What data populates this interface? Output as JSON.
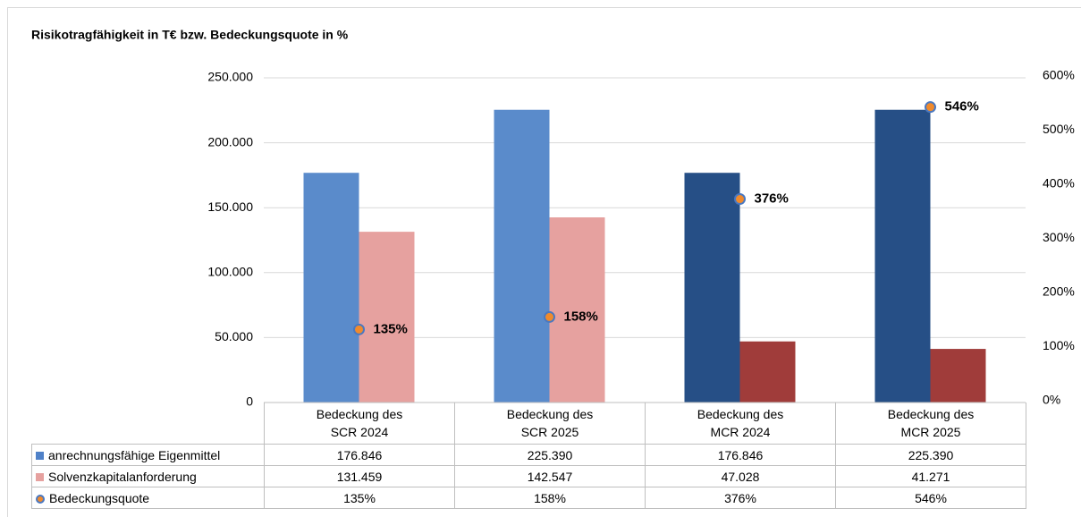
{
  "chart_data": {
    "type": "bar",
    "title": "Risikotragfähigkeit in T€ bzw. Bedeckungsquote in %",
    "categories": [
      "Bedeckung des SCR 2024",
      "Bedeckung des SCR 2025",
      "Bedeckung des MCR 2024",
      "Bedeckung des MCR 2025"
    ],
    "series": [
      {
        "name": "anrechnungsfähige Eigenmittel",
        "color": "#4f81c8",
        "colors": [
          "#5a8bcb",
          "#5a8bcb",
          "#264f86",
          "#264f86"
        ],
        "values": [
          176846,
          225390,
          176846,
          225390
        ],
        "value_labels": [
          "176.846",
          "225.390",
          "176.846",
          "225.390"
        ]
      },
      {
        "name": "Solvenzkapitalanforderung",
        "color": "#e6a19f",
        "colors": [
          "#e6a19f",
          "#e6a19f",
          "#a03c3a",
          "#a03c3a"
        ],
        "values": [
          131459,
          142547,
          47028,
          41271
        ],
        "value_labels": [
          "131.459",
          "142.547",
          "47.028",
          "41.271"
        ]
      },
      {
        "name": "Bedeckungsquote",
        "color": "#f08a2c",
        "axis": "y2",
        "values": [
          135,
          158,
          376,
          546
        ],
        "value_labels": [
          "135%",
          "158%",
          "376%",
          "546%"
        ]
      }
    ],
    "ylim": [
      0,
      250000
    ],
    "yticks": [
      0,
      {
        "value": 50000,
        "label": "50.000"
      },
      {
        "value": 100000,
        "label": "100.000"
      },
      {
        "value": 150000,
        "label": "150.000"
      },
      {
        "value": 200000,
        "label": "200.000"
      },
      {
        "value": 250000,
        "label": "250.000"
      }
    ],
    "y2lim": [
      0,
      600
    ],
    "y2ticks": [
      {
        "value": 0,
        "label": "0%"
      },
      {
        "value": 100,
        "label": "100%"
      },
      {
        "value": 200,
        "label": "200%"
      },
      {
        "value": 300,
        "label": "300%"
      },
      {
        "value": 400,
        "label": "400%"
      },
      {
        "value": 500,
        "label": "500%"
      },
      {
        "value": 600,
        "label": "600%"
      }
    ],
    "grid": true
  }
}
